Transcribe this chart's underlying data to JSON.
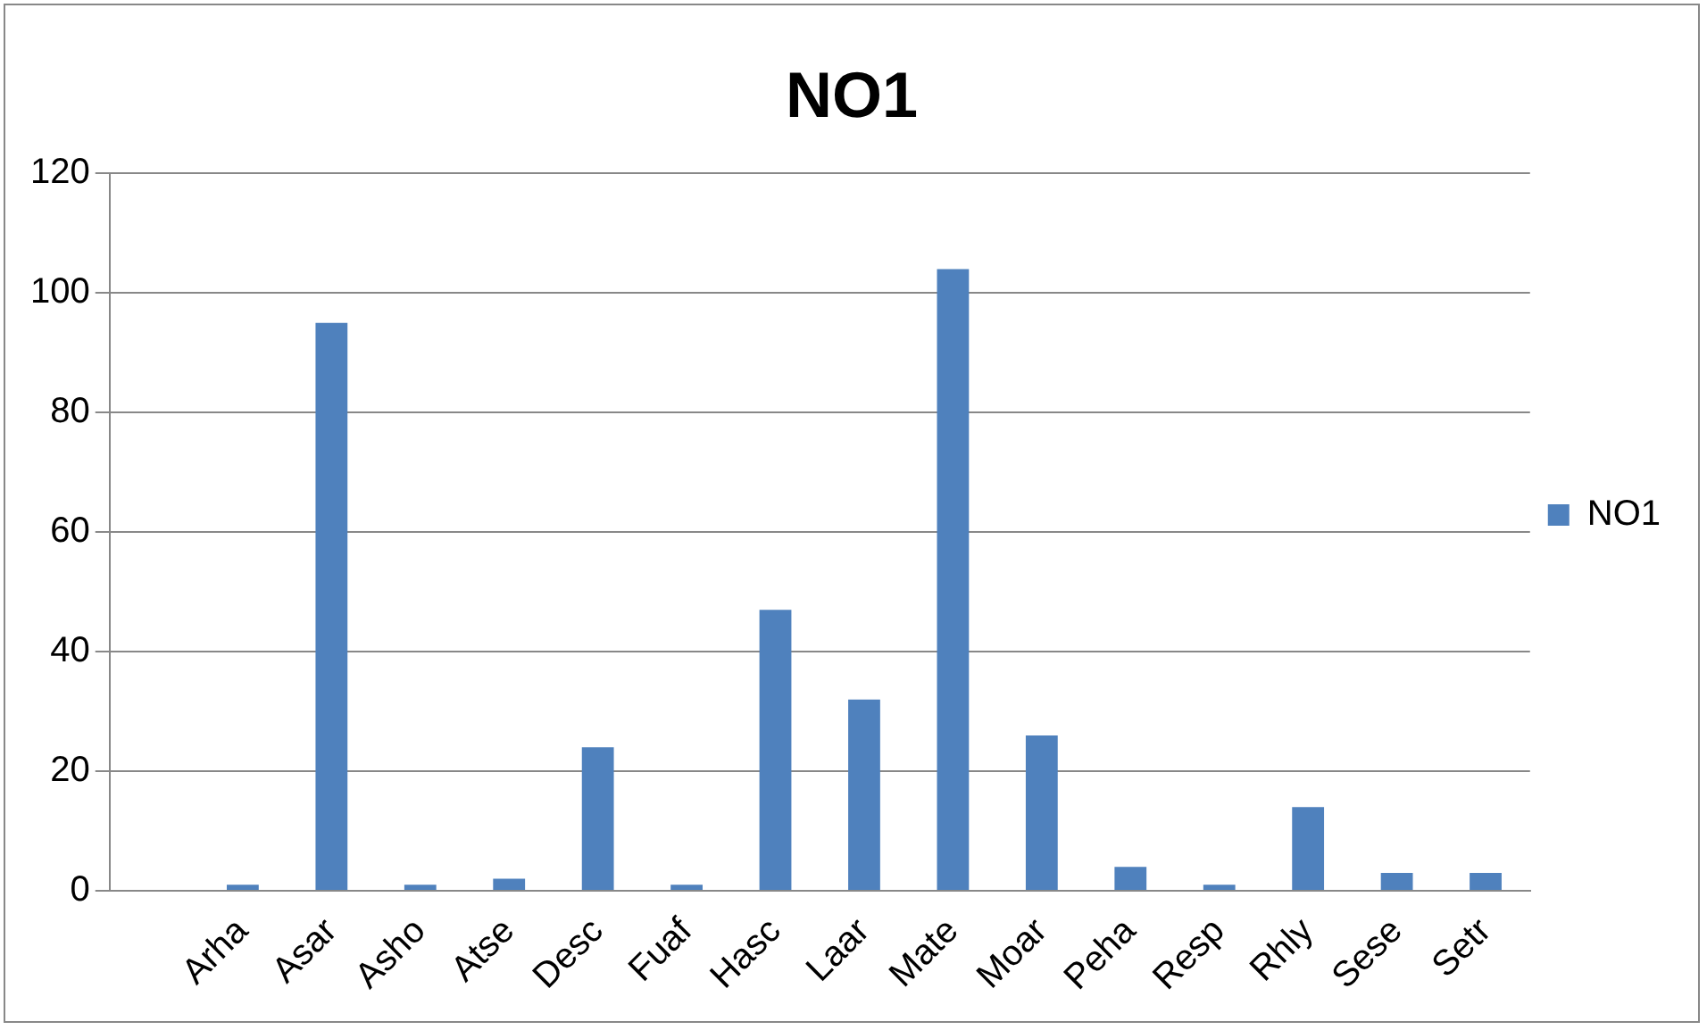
{
  "chart_data": {
    "type": "bar",
    "title": "NO1",
    "categories": [
      null,
      "Arha",
      "Asar",
      "Asho",
      "Atse",
      "Desc",
      "Fuaf",
      "Hasc",
      "Laar",
      "Mate",
      "Moar",
      "Peha",
      "Resp",
      "Rhly",
      "Sese",
      "Setr"
    ],
    "series": [
      {
        "name": "NO1",
        "color": "#4f81bd",
        "values": [
          null,
          1,
          95,
          1,
          2,
          24,
          1,
          47,
          32,
          104,
          26,
          4,
          1,
          14,
          3,
          3
        ]
      }
    ],
    "ylim": [
      0,
      120
    ],
    "yticks": [
      0,
      20,
      40,
      60,
      80,
      100,
      120
    ],
    "grid": "y",
    "legend": "right"
  }
}
